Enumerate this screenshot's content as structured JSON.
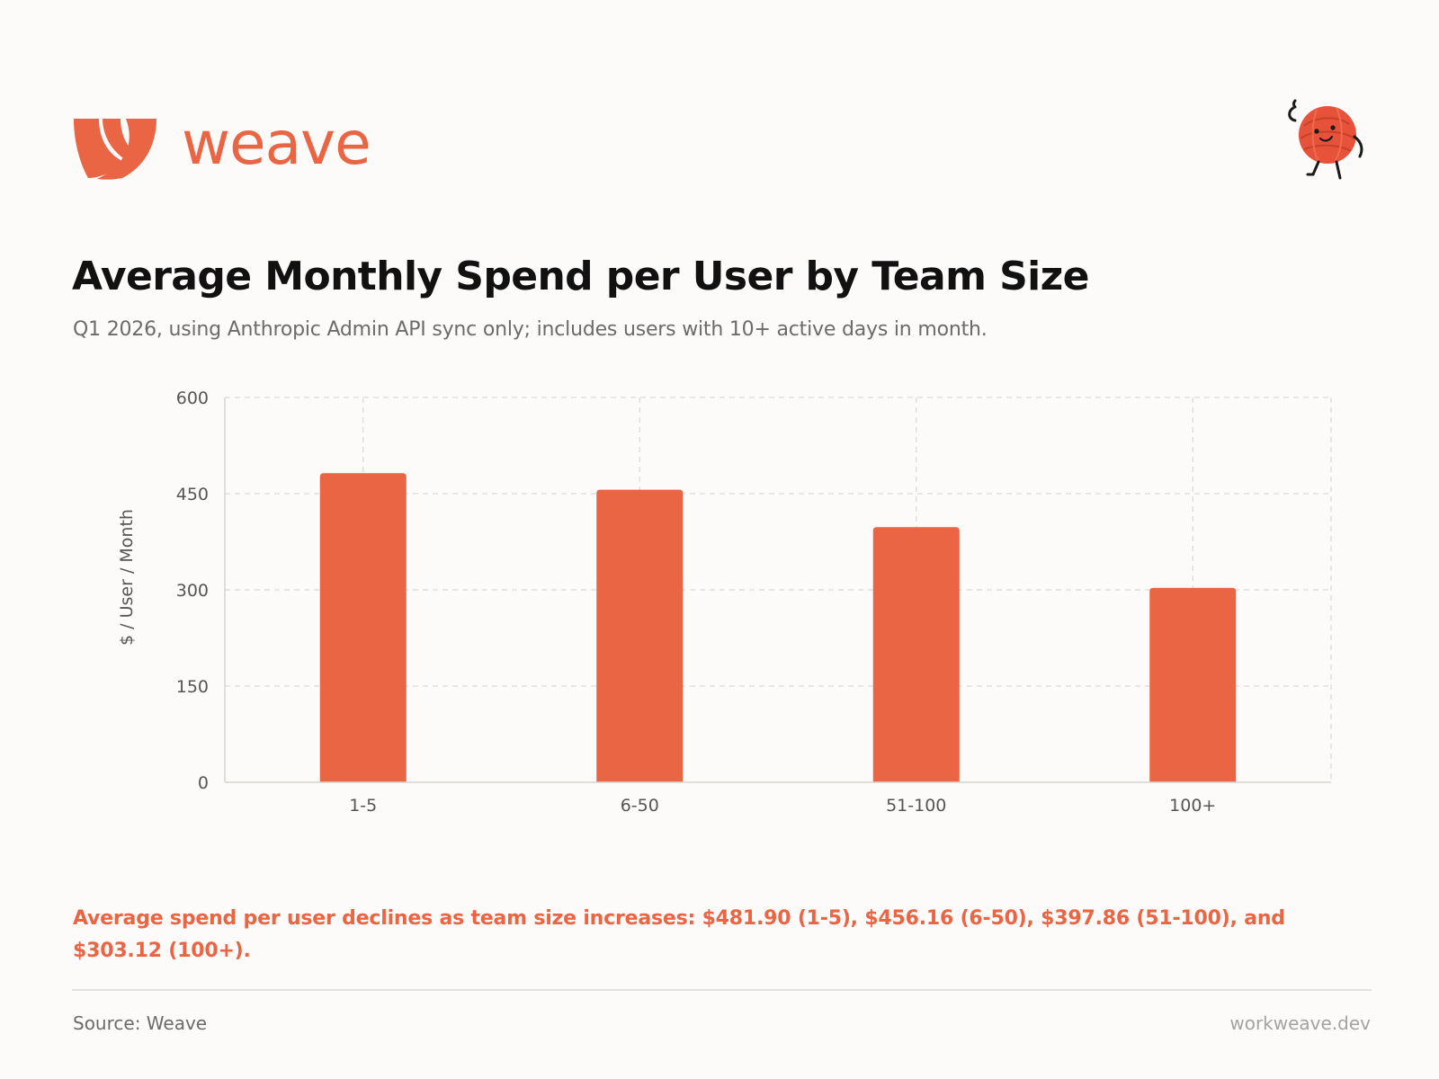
{
  "brand": {
    "name": "weave",
    "accent_color": "#ea6544",
    "logo_icon": "weave-logo-icon",
    "mascot_icon": "yarn-ball-mascot-icon"
  },
  "header": {
    "title": "Average Monthly Spend per User by Team Size",
    "subtitle": "Q1 2026, using Anthropic Admin API sync only; includes users with 10+ active days in month."
  },
  "chart_data": {
    "type": "bar",
    "title": "Average Monthly Spend per User by Team Size",
    "subtitle": "Q1 2026, using Anthropic Admin API sync only; includes users with 10+ active days in month.",
    "categories": [
      "1-5",
      "6-50",
      "51-100",
      "100+"
    ],
    "values": [
      481.9,
      456.16,
      397.86,
      303.12
    ],
    "xlabel": "",
    "ylabel": "$ / User / Month",
    "ylim": [
      0,
      600
    ],
    "yticks": [
      0,
      150,
      300,
      450,
      600
    ],
    "grid": true,
    "bar_color": "#ea6544",
    "grid_color": "#dedad6"
  },
  "insight": {
    "text": "Average spend per user declines as team size increases: $481.90 (1-5), $456.16 (6-50), $397.86 (51-100), and $303.12 (100+)."
  },
  "footer": {
    "source": "Source: Weave",
    "url": "workweave.dev"
  }
}
